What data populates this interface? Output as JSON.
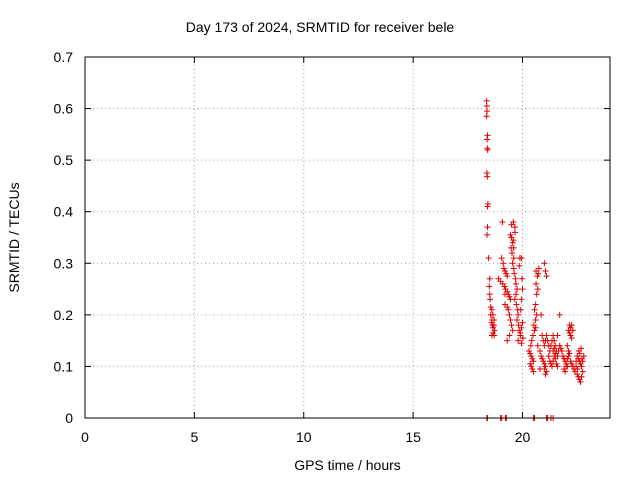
{
  "chart_data": {
    "type": "scatter",
    "title": "Day 173 of 2024, SRMTID for receiver bele",
    "xlabel": "GPS time / hours",
    "ylabel": "SRMTID / TECUs",
    "xlim": [
      0,
      24
    ],
    "ylim": [
      0,
      0.7
    ],
    "xticks": [
      0,
      5,
      10,
      15,
      20
    ],
    "xtick_labels": [
      "0",
      "5",
      "10",
      "15",
      "20"
    ],
    "yticks": [
      0,
      0.1,
      0.2,
      0.3,
      0.4,
      0.5,
      0.6,
      0.7
    ],
    "ytick_labels": [
      "0",
      "0.1",
      "0.2",
      "0.3",
      "0.4",
      "0.5",
      "0.6",
      "0.7"
    ],
    "grid": true,
    "marker": "+",
    "color": "#e00000",
    "series": [
      {
        "name": "SRMTID",
        "points": [
          [
            18.36,
            0.615
          ],
          [
            18.37,
            0.605
          ],
          [
            18.38,
            0.595
          ],
          [
            18.36,
            0.585
          ],
          [
            18.4,
            0.548
          ],
          [
            18.38,
            0.54
          ],
          [
            18.39,
            0.523
          ],
          [
            18.41,
            0.52
          ],
          [
            18.37,
            0.475
          ],
          [
            18.39,
            0.468
          ],
          [
            18.42,
            0.415
          ],
          [
            18.4,
            0.41
          ],
          [
            18.4,
            0.37
          ],
          [
            18.38,
            0.355
          ],
          [
            18.45,
            0.31
          ],
          [
            18.5,
            0.27
          ],
          [
            18.48,
            0.255
          ],
          [
            18.5,
            0.24
          ],
          [
            18.52,
            0.23
          ],
          [
            18.55,
            0.215
          ],
          [
            18.6,
            0.21
          ],
          [
            18.55,
            0.2
          ],
          [
            18.65,
            0.2
          ],
          [
            18.6,
            0.19
          ],
          [
            18.7,
            0.19
          ],
          [
            18.58,
            0.185
          ],
          [
            18.62,
            0.18
          ],
          [
            18.7,
            0.18
          ],
          [
            18.65,
            0.175
          ],
          [
            18.72,
            0.17
          ],
          [
            18.66,
            0.165
          ],
          [
            18.7,
            0.16
          ],
          [
            18.6,
            0.16
          ],
          [
            18.9,
            0.27
          ],
          [
            19.0,
            0.265
          ],
          [
            19.05,
            0.31
          ],
          [
            19.08,
            0.38
          ],
          [
            19.12,
            0.3
          ],
          [
            19.15,
            0.29
          ],
          [
            19.2,
            0.285
          ],
          [
            19.25,
            0.28
          ],
          [
            19.3,
            0.275
          ],
          [
            19.1,
            0.26
          ],
          [
            19.18,
            0.255
          ],
          [
            19.22,
            0.25
          ],
          [
            19.3,
            0.245
          ],
          [
            19.35,
            0.24
          ],
          [
            19.4,
            0.235
          ],
          [
            19.45,
            0.23
          ],
          [
            19.2,
            0.22
          ],
          [
            19.3,
            0.215
          ],
          [
            19.35,
            0.21
          ],
          [
            19.4,
            0.2
          ],
          [
            19.45,
            0.19
          ],
          [
            19.5,
            0.18
          ],
          [
            19.55,
            0.17
          ],
          [
            19.4,
            0.16
          ],
          [
            19.3,
            0.15
          ],
          [
            19.2,
            0.24
          ],
          [
            19.45,
            0.355
          ],
          [
            19.5,
            0.35
          ],
          [
            19.55,
            0.34
          ],
          [
            19.48,
            0.33
          ],
          [
            19.52,
            0.32
          ],
          [
            19.6,
            0.31
          ],
          [
            19.55,
            0.3
          ],
          [
            19.6,
            0.29
          ],
          [
            19.5,
            0.375
          ],
          [
            19.58,
            0.38
          ],
          [
            19.65,
            0.37
          ],
          [
            19.62,
            0.28
          ],
          [
            19.68,
            0.27
          ],
          [
            19.7,
            0.26
          ],
          [
            19.75,
            0.25
          ],
          [
            19.7,
            0.24
          ],
          [
            19.65,
            0.23
          ],
          [
            19.72,
            0.22
          ],
          [
            19.78,
            0.21
          ],
          [
            19.8,
            0.2
          ],
          [
            19.75,
            0.19
          ],
          [
            19.82,
            0.18
          ],
          [
            19.85,
            0.17
          ],
          [
            19.9,
            0.16
          ],
          [
            19.8,
            0.15
          ],
          [
            19.9,
            0.165
          ],
          [
            19.95,
            0.175
          ],
          [
            20.0,
            0.185
          ],
          [
            19.92,
            0.21
          ],
          [
            19.95,
            0.23
          ],
          [
            20.0,
            0.25
          ],
          [
            19.98,
            0.27
          ],
          [
            19.88,
            0.31
          ],
          [
            19.95,
            0.31
          ],
          [
            19.85,
            0.295
          ],
          [
            20.02,
            0.155
          ],
          [
            19.95,
            0.145
          ],
          [
            19.6,
            0.33
          ],
          [
            19.58,
            0.345
          ],
          [
            19.66,
            0.36
          ],
          [
            20.3,
            0.13
          ],
          [
            20.35,
            0.125
          ],
          [
            20.4,
            0.12
          ],
          [
            20.45,
            0.115
          ],
          [
            20.5,
            0.11
          ],
          [
            20.35,
            0.105
          ],
          [
            20.4,
            0.1
          ],
          [
            20.45,
            0.095
          ],
          [
            20.5,
            0.09
          ],
          [
            20.38,
            0.14
          ],
          [
            20.42,
            0.15
          ],
          [
            20.48,
            0.16
          ],
          [
            20.55,
            0.17
          ],
          [
            20.6,
            0.175
          ],
          [
            20.52,
            0.18
          ],
          [
            20.6,
            0.19
          ],
          [
            20.65,
            0.2
          ],
          [
            20.55,
            0.21
          ],
          [
            20.6,
            0.22
          ],
          [
            20.65,
            0.24
          ],
          [
            20.7,
            0.25
          ],
          [
            20.62,
            0.26
          ],
          [
            20.68,
            0.275
          ],
          [
            20.72,
            0.28
          ],
          [
            20.62,
            0.285
          ],
          [
            20.75,
            0.29
          ],
          [
            20.85,
            0.2
          ],
          [
            20.9,
            0.16
          ],
          [
            20.95,
            0.15
          ],
          [
            20.7,
            0.14
          ],
          [
            20.8,
            0.13
          ],
          [
            20.85,
            0.12
          ],
          [
            20.9,
            0.115
          ],
          [
            20.95,
            0.11
          ],
          [
            21.0,
            0.105
          ],
          [
            21.05,
            0.1
          ],
          [
            21.0,
            0.095
          ],
          [
            21.1,
            0.09
          ],
          [
            21.05,
            0.085
          ],
          [
            20.8,
            0.095
          ],
          [
            21.0,
            0.3
          ],
          [
            21.05,
            0.285
          ],
          [
            21.1,
            0.275
          ],
          [
            21.0,
            0.14
          ],
          [
            21.05,
            0.15
          ],
          [
            21.1,
            0.16
          ],
          [
            21.15,
            0.15
          ],
          [
            21.2,
            0.14
          ],
          [
            21.25,
            0.13
          ],
          [
            21.3,
            0.14
          ],
          [
            21.35,
            0.15
          ],
          [
            21.4,
            0.16
          ],
          [
            21.45,
            0.15
          ],
          [
            21.5,
            0.14
          ],
          [
            21.55,
            0.13
          ],
          [
            21.6,
            0.12
          ],
          [
            21.65,
            0.13
          ],
          [
            21.7,
            0.14
          ],
          [
            21.75,
            0.135
          ],
          [
            21.8,
            0.13
          ],
          [
            21.2,
            0.12
          ],
          [
            21.25,
            0.11
          ],
          [
            21.3,
            0.105
          ],
          [
            21.35,
            0.1
          ],
          [
            21.4,
            0.11
          ],
          [
            21.45,
            0.12
          ],
          [
            21.5,
            0.115
          ],
          [
            21.55,
            0.105
          ],
          [
            21.6,
            0.1
          ],
          [
            21.4,
            0.13
          ],
          [
            21.45,
            0.135
          ],
          [
            21.5,
            0.125
          ],
          [
            21.85,
            0.12
          ],
          [
            21.9,
            0.115
          ],
          [
            21.95,
            0.11
          ],
          [
            22.0,
            0.105
          ],
          [
            22.05,
            0.1
          ],
          [
            21.9,
            0.095
          ],
          [
            21.95,
            0.09
          ],
          [
            22.0,
            0.1
          ],
          [
            22.05,
            0.115
          ],
          [
            22.1,
            0.12
          ],
          [
            22.1,
            0.17
          ],
          [
            22.15,
            0.18
          ],
          [
            22.2,
            0.175
          ],
          [
            22.25,
            0.18
          ],
          [
            22.15,
            0.165
          ],
          [
            22.2,
            0.16
          ],
          [
            22.3,
            0.17
          ],
          [
            22.25,
            0.155
          ],
          [
            21.7,
            0.2
          ],
          [
            21.6,
            0.16
          ],
          [
            22.05,
            0.14
          ],
          [
            22.1,
            0.13
          ],
          [
            22.15,
            0.125
          ],
          [
            22.2,
            0.11
          ],
          [
            22.25,
            0.105
          ],
          [
            22.3,
            0.1
          ],
          [
            22.35,
            0.095
          ],
          [
            22.4,
            0.09
          ],
          [
            22.45,
            0.11
          ],
          [
            22.5,
            0.12
          ],
          [
            22.55,
            0.115
          ],
          [
            22.6,
            0.11
          ],
          [
            22.65,
            0.105
          ],
          [
            22.7,
            0.1
          ],
          [
            22.75,
            0.11
          ],
          [
            22.8,
            0.12
          ],
          [
            22.5,
            0.085
          ],
          [
            22.55,
            0.08
          ],
          [
            22.6,
            0.075
          ],
          [
            22.65,
            0.07
          ],
          [
            22.7,
            0.08
          ],
          [
            22.75,
            0.09
          ],
          [
            22.58,
            0.13
          ],
          [
            22.62,
            0.125
          ],
          [
            22.68,
            0.135
          ],
          [
            22.72,
            0.115
          ],
          [
            22.45,
            0.1
          ],
          [
            22.52,
            0.095
          ],
          [
            18.37,
            0
          ],
          [
            18.4,
            0
          ],
          [
            19.0,
            0
          ],
          [
            19.05,
            0
          ],
          [
            19.22,
            0
          ],
          [
            19.26,
            0
          ],
          [
            20.5,
            0
          ],
          [
            20.55,
            0
          ],
          [
            21.1,
            0
          ],
          [
            21.15,
            0
          ],
          [
            21.3,
            0
          ],
          [
            21.4,
            0
          ]
        ]
      }
    ]
  }
}
